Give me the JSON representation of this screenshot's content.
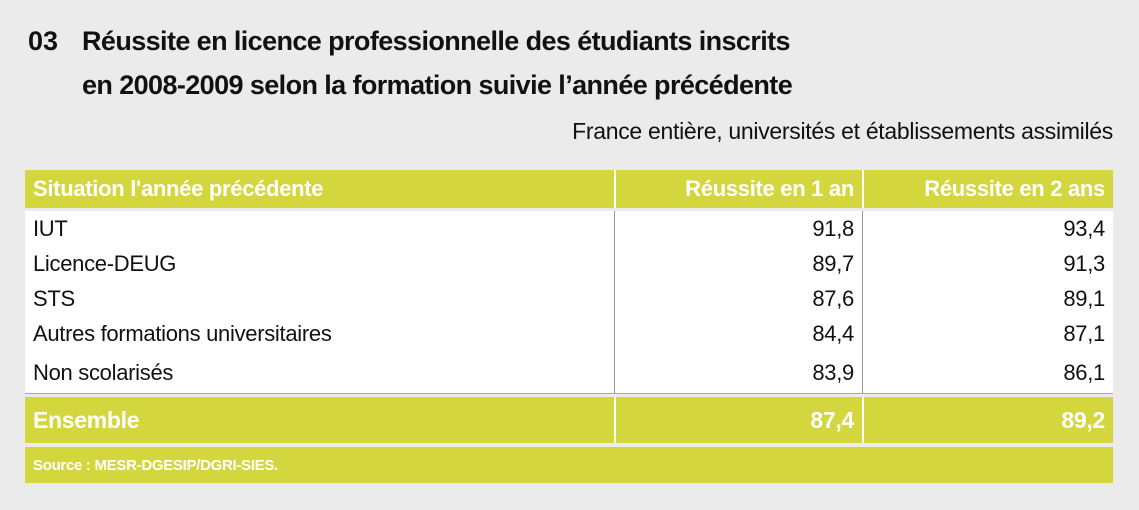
{
  "header": {
    "number": "03",
    "title_lines": [
      "Réussite en licence professionnelle des étudiants inscrits",
      "en 2008-2009 selon la formation suivie l’année précédente"
    ],
    "subtitle": "France entière, universités et établissements assimilés"
  },
  "table": {
    "columns": [
      "Situation l'année précédente",
      "Réussite en 1 an",
      "Réussite en 2 ans"
    ],
    "rows": [
      [
        "IUT",
        "91,8",
        "93,4"
      ],
      [
        "Licence-DEUG",
        "89,7",
        "91,3"
      ],
      [
        "STS",
        "87,6",
        "89,1"
      ],
      [
        "Autres formations universitaires",
        "84,4",
        "87,1"
      ],
      [
        "Non scolarisés",
        "83,9",
        "86,1"
      ]
    ],
    "total": [
      "Ensemble",
      "87,4",
      "89,2"
    ],
    "source": "Source : MESR-DGESIP/DGRI-SIES."
  }
}
